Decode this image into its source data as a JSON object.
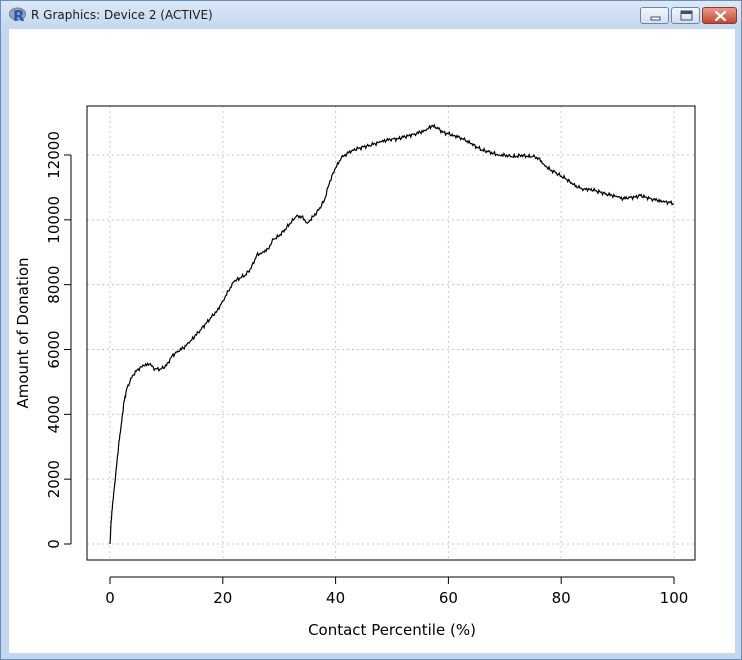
{
  "window": {
    "title": "R Graphics: Device 2 (ACTIVE)",
    "app_icon": "r-logo-icon",
    "controls": [
      "minimize-icon",
      "maximize-icon",
      "close-icon"
    ]
  },
  "colors": {
    "line": "#000000",
    "grid": "#c8c8c8",
    "titlebar": "#c4d7ee",
    "close": "#c84431"
  },
  "chart_data": {
    "type": "line",
    "title": "",
    "xlabel": "Contact Percentile (%)",
    "ylabel": "Amount of Donation",
    "xlim": [
      0,
      100
    ],
    "ylim": [
      0,
      13000
    ],
    "grid": true,
    "legend": "none",
    "x_ticks": [
      0,
      20,
      40,
      60,
      80,
      100
    ],
    "y_ticks": [
      0,
      2000,
      4000,
      6000,
      8000,
      10000,
      12000
    ],
    "series": [
      {
        "x": [
          0,
          0.2,
          0.5,
          1,
          1.5,
          2,
          2.5,
          3,
          4,
          5,
          6,
          7,
          8,
          9,
          10,
          11,
          12,
          13,
          14,
          15,
          16,
          17,
          18,
          19,
          20,
          21,
          22,
          23,
          24,
          25,
          26,
          27,
          28,
          29,
          30,
          31,
          32,
          33,
          34,
          35,
          36,
          37,
          38,
          39,
          40,
          41,
          42,
          43,
          44,
          45,
          46,
          47,
          48,
          49,
          50,
          51,
          52,
          53,
          54,
          55,
          56,
          57,
          58,
          59,
          60,
          61,
          62,
          63,
          64,
          65,
          66,
          67,
          68,
          69,
          70,
          71,
          72,
          73,
          74,
          75,
          76,
          77,
          78,
          79,
          80,
          81,
          82,
          83,
          84,
          85,
          86,
          87,
          88,
          89,
          90,
          91,
          92,
          93,
          94,
          95,
          96,
          97,
          98,
          99,
          100
        ],
        "values": [
          0,
          700,
          1300,
          2100,
          3000,
          3700,
          4400,
          4800,
          5200,
          5400,
          5500,
          5550,
          5400,
          5400,
          5500,
          5800,
          5950,
          6050,
          6200,
          6400,
          6600,
          6800,
          7000,
          7200,
          7500,
          7800,
          8100,
          8200,
          8300,
          8500,
          8900,
          9000,
          9100,
          9400,
          9500,
          9700,
          9900,
          10100,
          10100,
          9900,
          10100,
          10300,
          10600,
          11200,
          11600,
          11900,
          12050,
          12150,
          12200,
          12250,
          12300,
          12350,
          12400,
          12450,
          12500,
          12500,
          12550,
          12600,
          12650,
          12700,
          12750,
          12900,
          12850,
          12700,
          12650,
          12600,
          12550,
          12450,
          12350,
          12250,
          12150,
          12100,
          12050,
          12000,
          12000,
          11950,
          11950,
          12000,
          11950,
          11950,
          11900,
          11700,
          11550,
          11450,
          11350,
          11250,
          11100,
          11000,
          10950,
          10950,
          10900,
          10850,
          10800,
          10750,
          10700,
          10650,
          10700,
          10700,
          10750,
          10700,
          10650,
          10600,
          10550,
          10550,
          10500
        ]
      }
    ]
  }
}
